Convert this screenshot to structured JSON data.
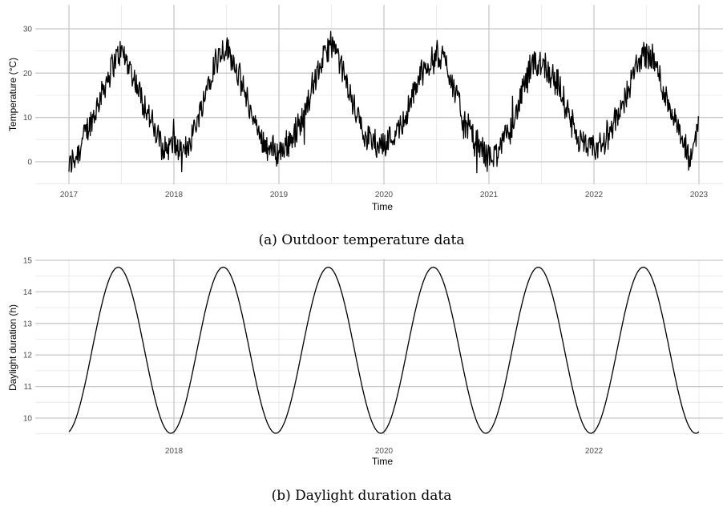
{
  "chart_data": [
    {
      "type": "line",
      "caption": "(a) Outdoor temperature data",
      "xlabel": "Time",
      "ylabel": "Temperature (°C)",
      "x_ticks": [
        "2017",
        "2018",
        "2019",
        "2020",
        "2021",
        "2022",
        "2023"
      ],
      "y_ticks": [
        "0",
        "10",
        "20",
        "30"
      ],
      "xlim": [
        2017.0,
        2023.0
      ],
      "ylim": [
        -5,
        35
      ],
      "grid": true,
      "series": [
        {
          "x_start": 2017.0,
          "x_step": 0.0833333,
          "approximate_monthly_values": [
            -1,
            2,
            7,
            11,
            17,
            22,
            25,
            21,
            16,
            11,
            6,
            3,
            4,
            1,
            6,
            11,
            19,
            24,
            26,
            22,
            16,
            10,
            5,
            3,
            2,
            4,
            7,
            11,
            18,
            23,
            27,
            22,
            16,
            10,
            6,
            4,
            4,
            6,
            8,
            13,
            19,
            22,
            24,
            23,
            17,
            10,
            6,
            3,
            1,
            2,
            6,
            10,
            17,
            21,
            23,
            20,
            17,
            11,
            6,
            3,
            3,
            4,
            8,
            11,
            17,
            22,
            25,
            22,
            16,
            11,
            5,
            0,
            10
          ]
        }
      ]
    },
    {
      "type": "line",
      "caption": "(b) Daylight duration data",
      "xlabel": "Time",
      "ylabel": "Daylight duration (h)",
      "x_ticks": [
        "2018",
        "2020",
        "2022"
      ],
      "y_ticks": [
        "10",
        "11",
        "12",
        "13",
        "14",
        "15"
      ],
      "xlim": [
        2017.0,
        2023.0
      ],
      "ylim": [
        9.5,
        15.0
      ],
      "grid": true,
      "series": [
        {
          "function": "daylight = 12.15 - 2.63 * cos(2*pi*(t - 2017 + 0.03))",
          "min": 9.52,
          "max": 14.78
        }
      ]
    }
  ]
}
